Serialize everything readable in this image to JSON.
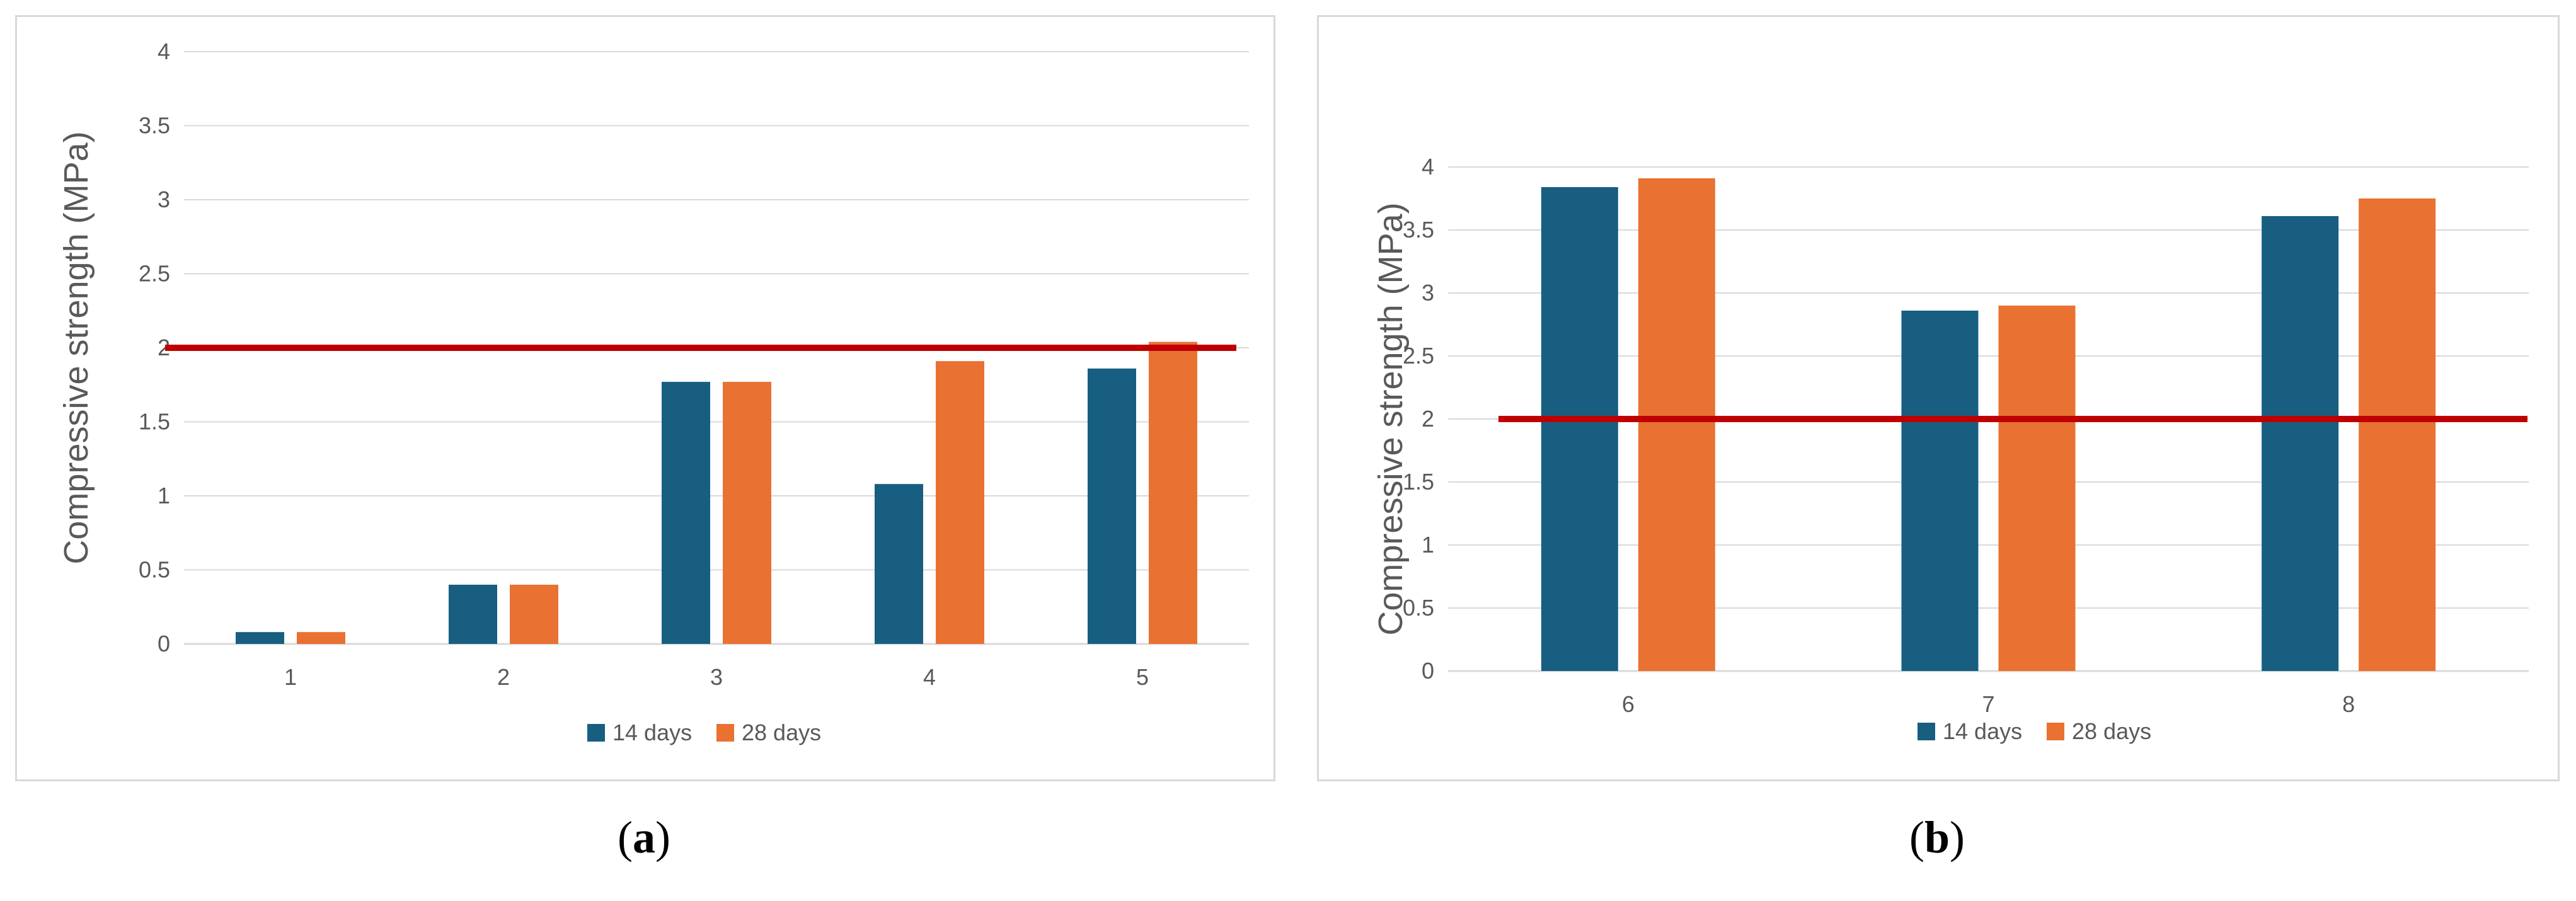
{
  "colors": {
    "series_14": "#175e81",
    "series_28": "#e97132",
    "threshold": "#c00000",
    "grid": "#d9d9d9",
    "text": "#595959"
  },
  "chart_data": [
    {
      "type": "bar",
      "panel": "a",
      "categories": [
        "1",
        "2",
        "3",
        "4",
        "5"
      ],
      "series": [
        {
          "name": "14 days",
          "values": [
            0.08,
            0.4,
            1.77,
            1.08,
            1.86
          ]
        },
        {
          "name": "28 days",
          "values": [
            0.08,
            0.4,
            1.77,
            1.91,
            2.04
          ]
        }
      ],
      "threshold": 2,
      "ylabel": "Compressive strength (MPa)",
      "xlabel": "",
      "ylim": [
        0,
        4
      ],
      "yticks": [
        "0",
        "0.5",
        "1",
        "1.5",
        "2",
        "2.5",
        "3",
        "3.5",
        "4"
      ],
      "legend": "bottom",
      "grid": true
    },
    {
      "type": "bar",
      "panel": "b",
      "categories": [
        "6",
        "7",
        "8"
      ],
      "series": [
        {
          "name": "14 days",
          "values": [
            3.84,
            2.86,
            3.61
          ]
        },
        {
          "name": "28 days",
          "values": [
            3.91,
            2.9,
            3.75
          ]
        }
      ],
      "threshold": 2,
      "ylabel": "Compressive strength (MPa)",
      "xlabel": "",
      "ylim": [
        0,
        4
      ],
      "yticks": [
        "0",
        "0.5",
        "1",
        "1.5",
        "2",
        "2.5",
        "3",
        "3.5",
        "4"
      ],
      "legend": "bottom",
      "grid": true
    }
  ],
  "captions": {
    "a": "a",
    "b": "b"
  }
}
